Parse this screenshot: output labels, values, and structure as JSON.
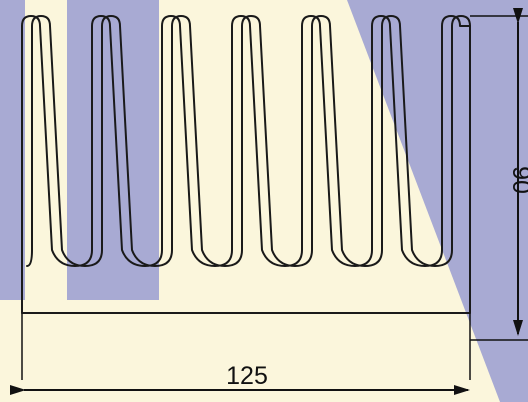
{
  "drawing": {
    "width_label": "125",
    "height_label": "90"
  },
  "colors": {
    "background": "#fbf6dc",
    "accent_band": "#a8aad3",
    "outline": "#1a1a1a"
  },
  "icons": {
    "dimension_arrow": "arrowhead"
  }
}
